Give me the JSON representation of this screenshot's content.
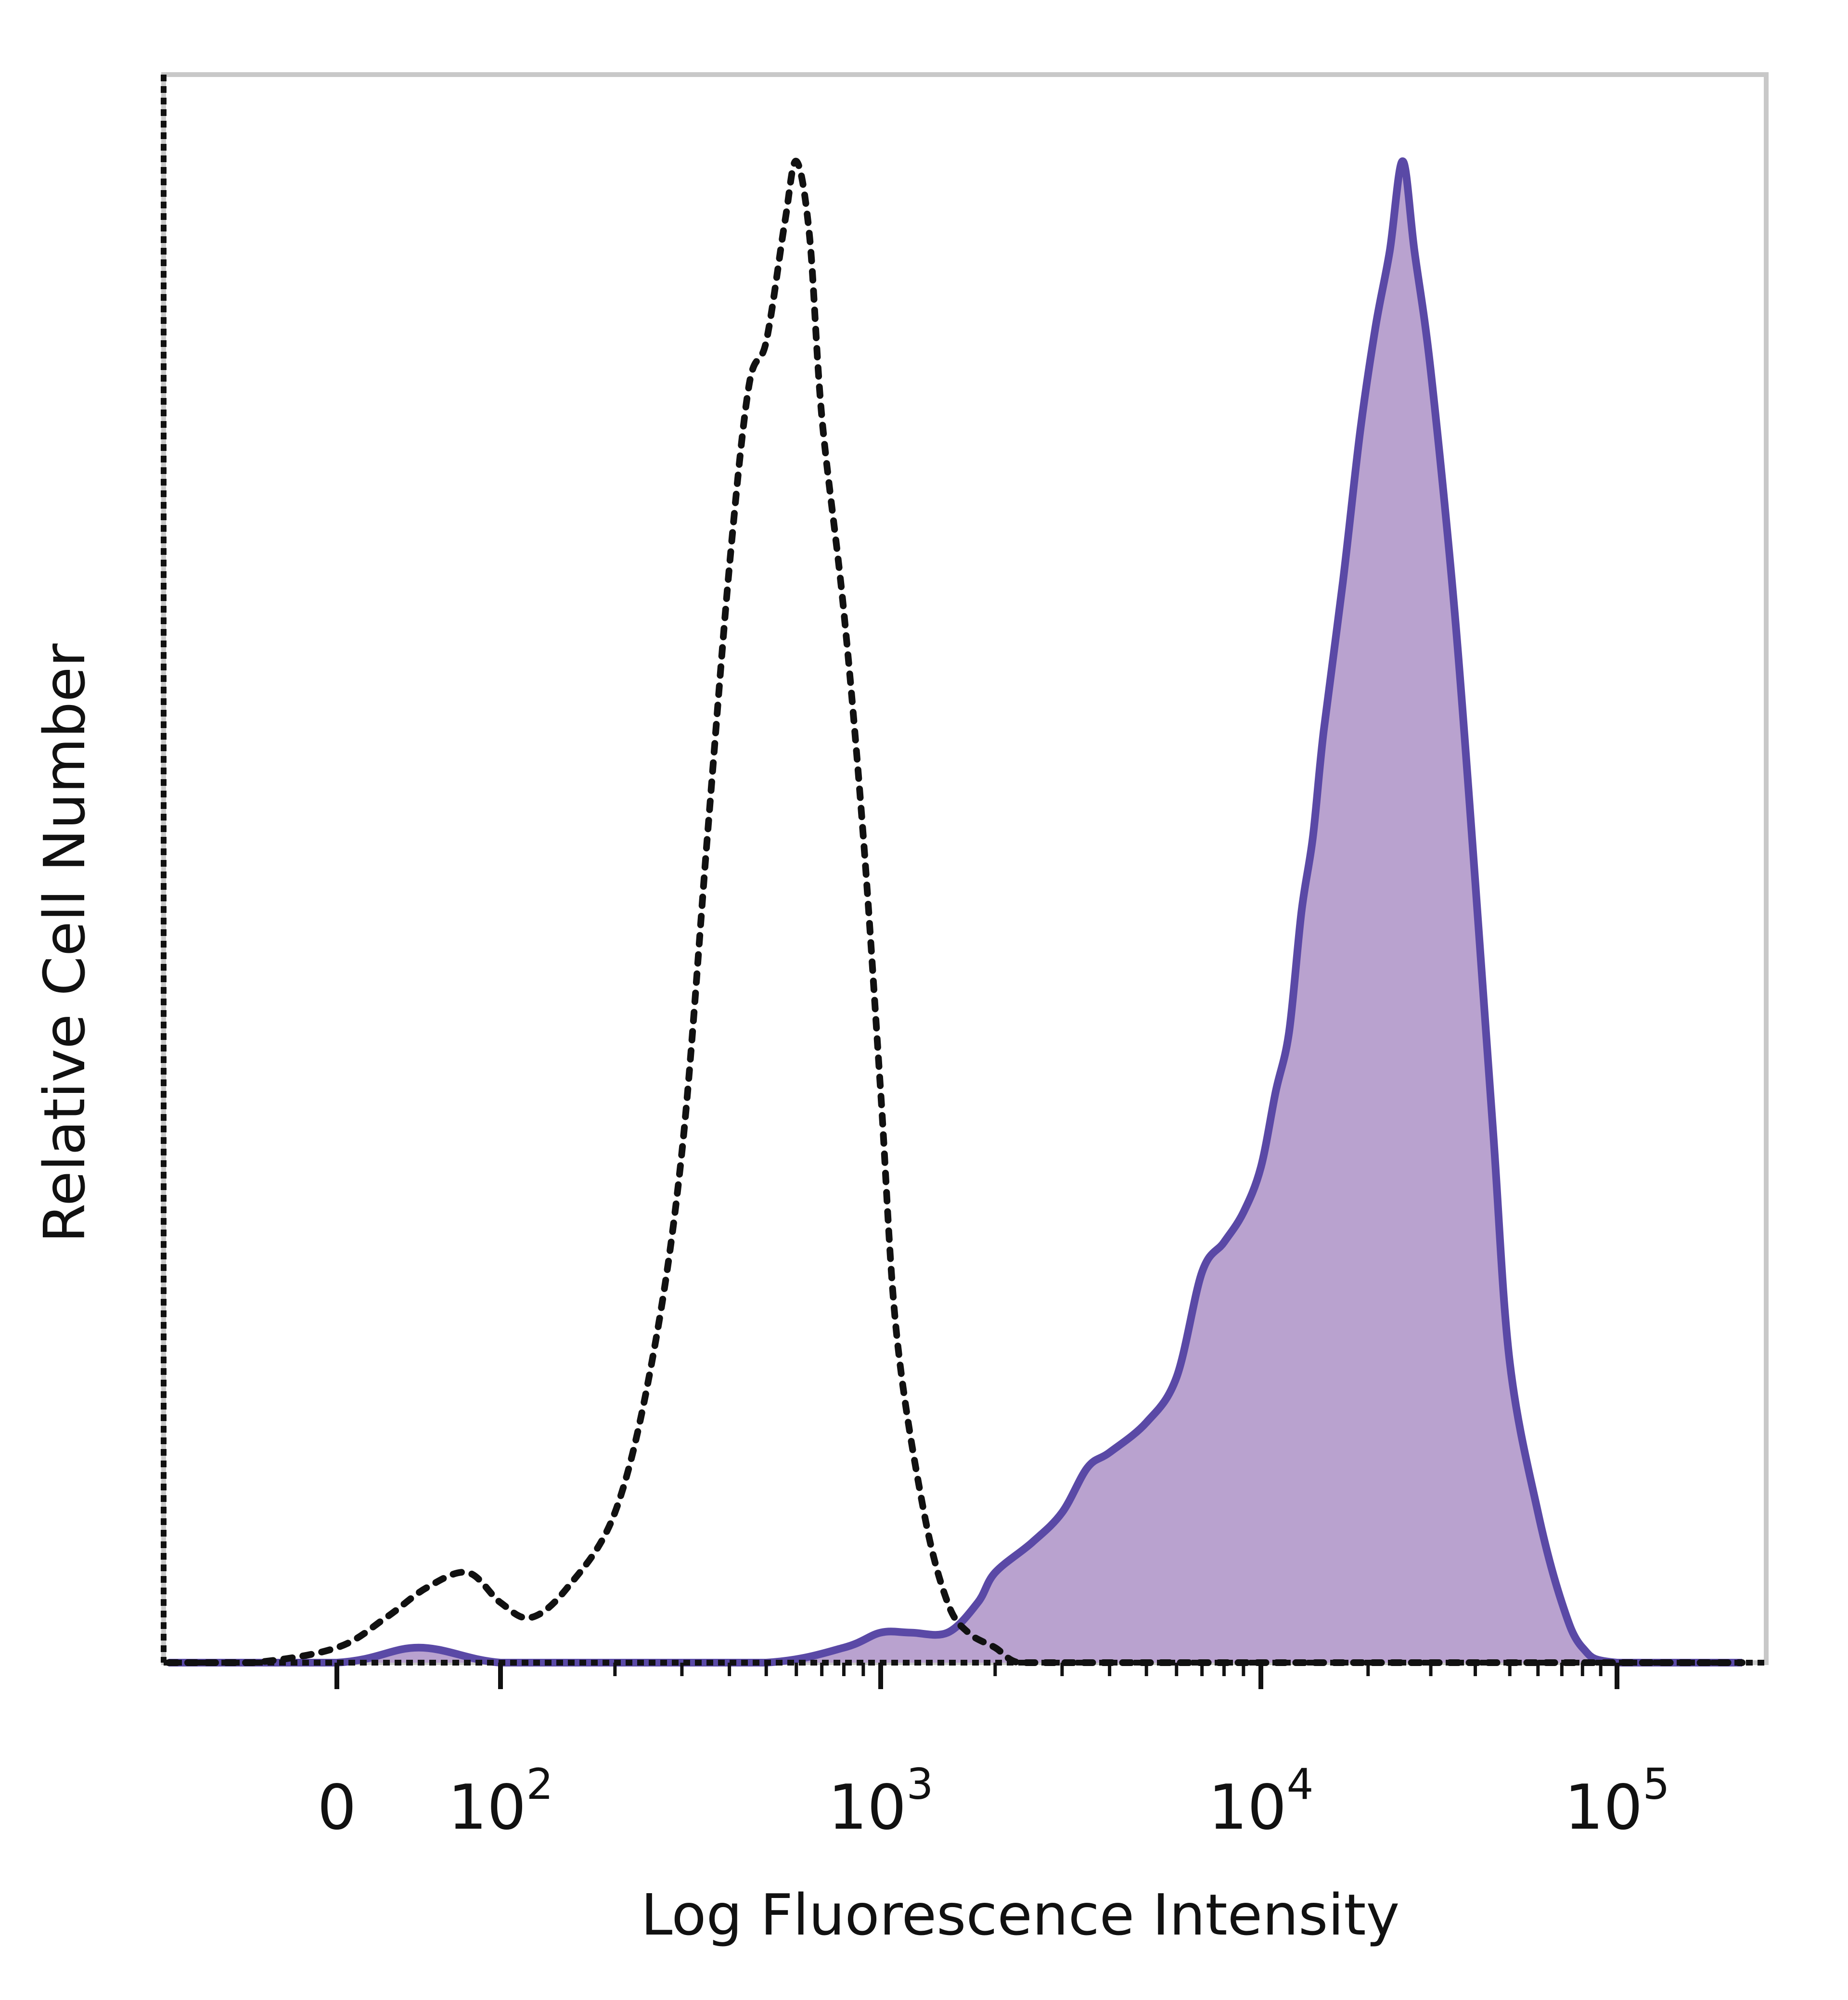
{
  "chart_data": {
    "type": "area",
    "title": "",
    "xlabel": "Log Fluorescence Intensity",
    "ylabel": "Relative Cell Number",
    "x_scale": "biexponential (log above 10^2)",
    "xlim": [
      -100,
      250000
    ],
    "ylim": [
      0,
      100
    ],
    "grid": false,
    "legend": "none",
    "x_ticks": [
      {
        "base": "0",
        "exp": "",
        "value": 0
      },
      {
        "base": "10",
        "exp": "2",
        "value": 100
      },
      {
        "base": "10",
        "exp": "3",
        "value": 1000
      },
      {
        "base": "10",
        "exp": "4",
        "value": 10000
      },
      {
        "base": "10",
        "exp": "5",
        "value": 100000
      }
    ],
    "series": [
      {
        "style": "dotted-outline",
        "color": "#111111",
        "x": [
          -100,
          -50,
          0,
          30,
          55,
          80,
          100,
          120,
          150,
          200,
          250,
          300,
          350,
          400,
          450,
          500,
          560,
          600,
          650,
          700,
          800,
          900,
          1000,
          1100,
          1300,
          1500,
          1700,
          2000,
          2300,
          3000,
          5000,
          10000,
          30000,
          100000,
          250000
        ],
        "y": [
          0,
          0,
          1,
          3,
          5,
          6,
          4,
          3,
          5,
          10,
          20,
          34,
          55,
          73,
          85,
          88,
          96,
          100,
          95,
          83,
          70,
          55,
          38,
          22,
          10,
          4,
          2,
          1,
          0,
          0,
          0,
          0,
          0,
          0,
          0
        ]
      },
      {
        "style": "filled",
        "color": "#5a49a6",
        "fill": "#b9a2cf",
        "x": [
          -100,
          0,
          50,
          100,
          200,
          500,
          800,
          1000,
          1200,
          1500,
          1800,
          2000,
          2500,
          3000,
          3500,
          4000,
          5000,
          6000,
          7000,
          8000,
          9000,
          10000,
          11000,
          12000,
          13000,
          14000,
          15000,
          17000,
          19000,
          21000,
          23000,
          25000,
          27000,
          30000,
          35000,
          40000,
          45000,
          50000,
          60000,
          70000,
          80000,
          100000,
          250000
        ],
        "y": [
          0,
          0,
          1,
          0,
          0,
          0,
          1,
          2,
          2,
          2,
          4,
          6,
          8,
          10,
          13,
          14,
          16,
          19,
          26,
          28,
          30,
          33,
          38,
          42,
          50,
          55,
          62,
          72,
          82,
          89,
          94,
          100,
          94,
          86,
          70,
          52,
          35,
          20,
          10,
          4,
          1,
          0,
          0
        ]
      }
    ]
  }
}
